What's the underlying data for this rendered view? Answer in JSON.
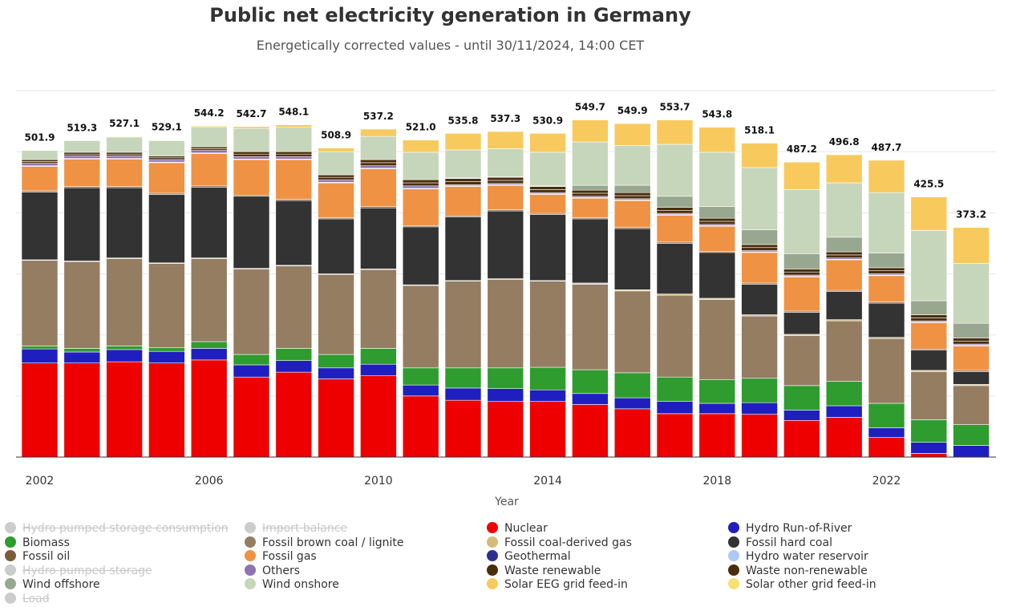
{
  "title": "Public net electricity generation in Germany",
  "subtitle": "Energetically corrected values - until 30/11/2024, 14:00 CET",
  "chart_data": {
    "type": "bar",
    "stacked": true,
    "xlabel": "Year",
    "ylabel": "",
    "ylim": [
      0,
      600
    ],
    "grid": true,
    "legend_position": "bottom",
    "categories": [
      "2002",
      "2003",
      "2004",
      "2005",
      "2006",
      "2007",
      "2008",
      "2009",
      "2010",
      "2011",
      "2012",
      "2013",
      "2014",
      "2015",
      "2016",
      "2017",
      "2018",
      "2019",
      "2020",
      "2021",
      "2022",
      "2023",
      "2024"
    ],
    "x_tick_labels": [
      "2002",
      "2006",
      "2010",
      "2014",
      "2018",
      "2022"
    ],
    "totals": [
      "501.9",
      "519.3",
      "527.1",
      "529.1",
      "544.2",
      "542.7",
      "548.1",
      "508.9",
      "537.2",
      "521.0",
      "535.8",
      "537.3",
      "530.9",
      "549.7",
      "549.9",
      "553.7",
      "543.8",
      "518.1",
      "487.2",
      "496.8",
      "487.7",
      "425.5",
      "373.2"
    ],
    "series": [
      {
        "name": "Nuclear",
        "color": "#ee0000",
        "values": [
          154,
          154,
          156,
          154,
          159,
          131,
          139,
          128,
          133,
          100,
          93,
          91,
          91,
          86,
          79,
          71,
          71,
          70,
          60,
          65,
          32,
          6,
          0
        ]
      },
      {
        "name": "Hydro Run-of-River",
        "color": "#1f1fbf",
        "values": [
          23,
          18,
          20,
          19,
          19,
          20,
          19,
          18,
          19,
          18,
          20,
          21,
          19,
          18,
          18,
          20,
          17,
          19,
          17,
          19,
          16,
          18,
          19
        ]
      },
      {
        "name": "Biomass",
        "color": "#2e9c2e",
        "values": [
          5,
          6,
          6,
          6,
          11,
          17,
          20,
          22,
          26,
          28,
          33,
          34,
          37,
          39,
          41,
          40,
          39,
          40,
          40,
          40,
          40,
          37,
          34
        ]
      },
      {
        "name": "Fossil brown coal / lignite",
        "color": "#957d62",
        "values": [
          140,
          142,
          143,
          138,
          136,
          140,
          135,
          131,
          129,
          135,
          142,
          145,
          141,
          140,
          134,
          134,
          131,
          102,
          82,
          99,
          106,
          79,
          64
        ]
      },
      {
        "name": "Fossil coal-derived gas",
        "color": "#d4bc7c",
        "values": [
          1,
          1,
          1,
          1,
          1,
          1,
          1,
          1,
          1,
          1,
          1,
          1,
          1,
          2,
          2,
          2,
          2,
          2,
          2,
          2,
          2,
          2,
          2
        ]
      },
      {
        "name": "Fossil hard coal",
        "color": "#333333",
        "values": [
          111,
          120,
          115,
          112,
          116,
          118,
          106,
          90,
          100,
          95,
          104,
          111,
          108,
          105,
          100,
          83,
          75,
          50,
          36,
          46,
          56,
          33,
          21
        ]
      },
      {
        "name": "Fossil oil",
        "color": "#7f5a3b",
        "values": [
          2,
          2,
          2,
          2,
          2,
          2,
          2,
          2,
          2,
          2,
          2,
          2,
          2,
          2,
          2,
          2,
          2,
          2,
          2,
          2,
          2,
          2,
          2
        ]
      },
      {
        "name": "Fossil gas",
        "color": "#ef9244",
        "values": [
          40,
          45,
          45,
          50,
          53,
          58,
          65,
          57,
          62,
          60,
          48,
          40,
          31,
          32,
          44,
          44,
          41,
          50,
          56,
          50,
          43,
          43,
          40
        ]
      },
      {
        "name": "Geothermal",
        "color": "#303090",
        "values": [
          0,
          0,
          0,
          0,
          0,
          0,
          0,
          0,
          0,
          0,
          0,
          0,
          0,
          0,
          0,
          0,
          0,
          0,
          0,
          0,
          0,
          0,
          0
        ]
      },
      {
        "name": "Hydro water reservoir",
        "color": "#b0c8f8",
        "values": [
          1,
          1,
          1,
          1,
          1,
          1,
          1,
          1,
          1,
          1,
          1,
          1,
          1,
          1,
          1,
          1,
          1,
          1,
          1,
          1,
          1,
          1,
          1
        ]
      },
      {
        "name": "Others",
        "color": "#8f72b2",
        "values": [
          4,
          4,
          4,
          4,
          4,
          4,
          4,
          4,
          4,
          4,
          2,
          2,
          2,
          2,
          2,
          2,
          2,
          2,
          2,
          2,
          2,
          2,
          2
        ]
      },
      {
        "name": "Waste renewable",
        "color": "#4a2e0c",
        "values": [
          3,
          3,
          3,
          3,
          3,
          4,
          4,
          4,
          5,
          5,
          5,
          5,
          5,
          5,
          5,
          5,
          5,
          5,
          5,
          5,
          5,
          5,
          5
        ]
      },
      {
        "name": "Waste non-renewable",
        "color": "#4a2e0c",
        "values": [
          3,
          3,
          3,
          3,
          3,
          4,
          4,
          4,
          5,
          5,
          5,
          5,
          5,
          5,
          5,
          5,
          5,
          5,
          5,
          5,
          5,
          5,
          5
        ]
      },
      {
        "name": "Wind offshore",
        "color": "#98a890",
        "values": [
          0,
          0,
          0,
          0,
          0,
          0,
          0,
          0,
          0,
          0,
          1,
          1,
          1,
          8,
          12,
          18,
          19,
          24,
          25,
          24,
          24,
          23,
          24
        ]
      },
      {
        "name": "Wind onshore",
        "color": "#c6d6ba",
        "values": [
          15,
          19,
          25,
          25,
          32,
          38,
          40,
          38,
          38,
          45,
          46,
          46,
          55,
          71,
          65,
          85,
          89,
          102,
          105,
          89,
          99,
          115,
          98
        ]
      },
      {
        "name": "Solar EEG grid feed-in",
        "color": "#f8ca5e",
        "values": [
          0,
          0,
          1,
          1,
          2,
          3,
          4,
          6,
          12,
          20,
          27,
          28,
          31,
          36,
          36,
          40,
          41,
          40,
          45,
          46,
          53,
          55,
          59
        ]
      },
      {
        "name": "Solar other grid feed-in",
        "color": "#f8e070",
        "values": [
          0,
          0,
          0,
          0,
          0,
          0,
          0,
          0,
          0,
          0,
          0,
          0,
          0,
          0,
          0,
          0,
          0,
          0,
          0,
          0,
          0,
          0,
          0
        ]
      }
    ],
    "legend": [
      {
        "name": "Hydro pumped storage consumption",
        "color": "#cccccc",
        "hidden": true
      },
      {
        "name": "Import balance",
        "color": "#cccccc",
        "hidden": true
      },
      {
        "name": "Nuclear",
        "color": "#ee0000",
        "hidden": false
      },
      {
        "name": "Hydro Run-of-River",
        "color": "#1f1fbf",
        "hidden": false
      },
      {
        "name": "Biomass",
        "color": "#2e9c2e",
        "hidden": false
      },
      {
        "name": "Fossil brown coal / lignite",
        "color": "#957d62",
        "hidden": false
      },
      {
        "name": "Fossil coal-derived gas",
        "color": "#d4bc7c",
        "hidden": false
      },
      {
        "name": "Fossil hard coal",
        "color": "#333333",
        "hidden": false
      },
      {
        "name": "Fossil oil",
        "color": "#7f5a3b",
        "hidden": false
      },
      {
        "name": "Fossil gas",
        "color": "#ef9244",
        "hidden": false
      },
      {
        "name": "Geothermal",
        "color": "#303090",
        "hidden": false
      },
      {
        "name": "Hydro water reservoir",
        "color": "#b0c8f8",
        "hidden": false
      },
      {
        "name": "Hydro pumped storage",
        "color": "#cccccc",
        "hidden": true
      },
      {
        "name": "Others",
        "color": "#8f72b2",
        "hidden": false
      },
      {
        "name": "Waste renewable",
        "color": "#4a2e0c",
        "hidden": false
      },
      {
        "name": "Waste non-renewable",
        "color": "#4a2e0c",
        "hidden": false
      },
      {
        "name": "Wind offshore",
        "color": "#98a890",
        "hidden": false
      },
      {
        "name": "Wind onshore",
        "color": "#c6d6ba",
        "hidden": false
      },
      {
        "name": "Solar EEG grid feed-in",
        "color": "#f8ca5e",
        "hidden": false
      },
      {
        "name": "Solar other grid feed-in",
        "color": "#f8e070",
        "hidden": false
      },
      {
        "name": "Load",
        "color": "#cccccc",
        "hidden": true
      }
    ]
  }
}
